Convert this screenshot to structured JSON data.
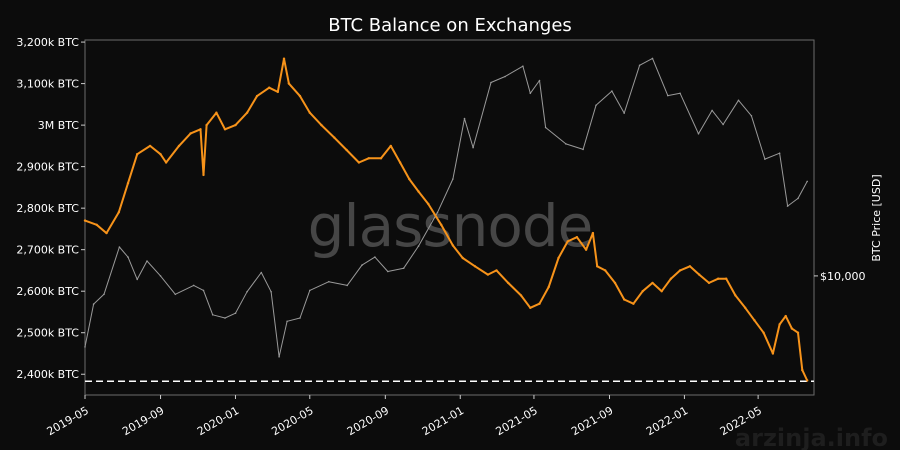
{
  "chart_data": {
    "type": "line",
    "title": "BTC Balance on Exchanges",
    "ylabel": "",
    "y2label": "BTC Price [USD]",
    "x_range": [
      "2019-05-01",
      "2022-07-31"
    ],
    "x_ticks": [
      "2019-05",
      "2019-09",
      "2020-01",
      "2020-05",
      "2020-09",
      "2021-01",
      "2021-05",
      "2021-09",
      "2022-01",
      "2022-05"
    ],
    "y_ticks": [
      {
        "value": 2400000,
        "label": "2,400k BTC"
      },
      {
        "value": 2500000,
        "label": "2,500k BTC"
      },
      {
        "value": 2600000,
        "label": "2,600k BTC"
      },
      {
        "value": 2700000,
        "label": "2,700k BTC"
      },
      {
        "value": 2800000,
        "label": "2,800k BTC"
      },
      {
        "value": 2900000,
        "label": "2,900k BTC"
      },
      {
        "value": 3000000,
        "label": "3M BTC"
      },
      {
        "value": 3100000,
        "label": "3,100k BTC"
      },
      {
        "value": 3200000,
        "label": "3,200k BTC"
      }
    ],
    "ylim": [
      2350000,
      3205000
    ],
    "y2_ticks": [
      {
        "value": 10000,
        "label": "$10,000"
      }
    ],
    "y2_scale": "log",
    "y2lim": [
      3500,
      80000
    ],
    "grid": false,
    "reference_line": {
      "y": 2383000,
      "style": "dashed",
      "color": "#ffffff"
    },
    "series": [
      {
        "axis": "left",
        "color": "#f7931a",
        "points": [
          [
            "2019-05-01",
            2770000
          ],
          [
            "2019-05-20",
            2760000
          ],
          [
            "2019-06-05",
            2740000
          ],
          [
            "2019-06-25",
            2790000
          ],
          [
            "2019-07-10",
            2860000
          ],
          [
            "2019-07-25",
            2930000
          ],
          [
            "2019-08-15",
            2950000
          ],
          [
            "2019-09-01",
            2930000
          ],
          [
            "2019-09-10",
            2910000
          ],
          [
            "2019-10-01",
            2950000
          ],
          [
            "2019-10-20",
            2980000
          ],
          [
            "2019-11-05",
            2990000
          ],
          [
            "2019-11-10",
            2880000
          ],
          [
            "2019-11-15",
            3000000
          ],
          [
            "2019-12-01",
            3030000
          ],
          [
            "2019-12-15",
            2990000
          ],
          [
            "2020-01-01",
            3000000
          ],
          [
            "2020-01-20",
            3030000
          ],
          [
            "2020-02-05",
            3070000
          ],
          [
            "2020-02-25",
            3090000
          ],
          [
            "2020-03-10",
            3080000
          ],
          [
            "2020-03-20",
            3160000
          ],
          [
            "2020-03-28",
            3100000
          ],
          [
            "2020-04-15",
            3070000
          ],
          [
            "2020-05-01",
            3030000
          ],
          [
            "2020-05-20",
            3000000
          ],
          [
            "2020-06-10",
            2970000
          ],
          [
            "2020-06-30",
            2940000
          ],
          [
            "2020-07-20",
            2910000
          ],
          [
            "2020-08-05",
            2920000
          ],
          [
            "2020-08-25",
            2920000
          ],
          [
            "2020-09-10",
            2950000
          ],
          [
            "2020-09-25",
            2910000
          ],
          [
            "2020-10-10",
            2870000
          ],
          [
            "2020-10-25",
            2840000
          ],
          [
            "2020-11-10",
            2810000
          ],
          [
            "2020-12-01",
            2760000
          ],
          [
            "2020-12-20",
            2710000
          ],
          [
            "2021-01-05",
            2680000
          ],
          [
            "2021-01-25",
            2660000
          ],
          [
            "2021-02-15",
            2640000
          ],
          [
            "2021-03-01",
            2650000
          ],
          [
            "2021-03-20",
            2620000
          ],
          [
            "2021-04-10",
            2590000
          ],
          [
            "2021-04-25",
            2560000
          ],
          [
            "2021-05-10",
            2570000
          ],
          [
            "2021-05-25",
            2610000
          ],
          [
            "2021-06-10",
            2680000
          ],
          [
            "2021-06-25",
            2720000
          ],
          [
            "2021-07-10",
            2730000
          ],
          [
            "2021-07-25",
            2700000
          ],
          [
            "2021-08-05",
            2740000
          ],
          [
            "2021-08-12",
            2660000
          ],
          [
            "2021-08-25",
            2650000
          ],
          [
            "2021-09-10",
            2620000
          ],
          [
            "2021-09-25",
            2580000
          ],
          [
            "2021-10-10",
            2570000
          ],
          [
            "2021-10-25",
            2600000
          ],
          [
            "2021-11-10",
            2620000
          ],
          [
            "2021-11-25",
            2600000
          ],
          [
            "2021-12-10",
            2630000
          ],
          [
            "2021-12-25",
            2650000
          ],
          [
            "2022-01-10",
            2660000
          ],
          [
            "2022-01-25",
            2640000
          ],
          [
            "2022-02-10",
            2620000
          ],
          [
            "2022-02-25",
            2630000
          ],
          [
            "2022-03-10",
            2630000
          ],
          [
            "2022-03-25",
            2590000
          ],
          [
            "2022-04-10",
            2560000
          ],
          [
            "2022-04-25",
            2530000
          ],
          [
            "2022-05-10",
            2500000
          ],
          [
            "2022-05-25",
            2450000
          ],
          [
            "2022-06-05",
            2520000
          ],
          [
            "2022-06-15",
            2540000
          ],
          [
            "2022-06-25",
            2510000
          ],
          [
            "2022-07-05",
            2500000
          ],
          [
            "2022-07-12",
            2410000
          ],
          [
            "2022-07-20",
            2385000
          ]
        ]
      },
      {
        "axis": "right",
        "color": "#9a9a9a",
        "points": [
          [
            "2019-05-01",
            5350
          ],
          [
            "2019-05-15",
            7800
          ],
          [
            "2019-06-01",
            8500
          ],
          [
            "2019-06-26",
            12900
          ],
          [
            "2019-07-10",
            11800
          ],
          [
            "2019-07-25",
            9700
          ],
          [
            "2019-08-10",
            11400
          ],
          [
            "2019-09-01",
            10000
          ],
          [
            "2019-09-25",
            8500
          ],
          [
            "2019-10-25",
            9200
          ],
          [
            "2019-11-10",
            8800
          ],
          [
            "2019-11-25",
            7100
          ],
          [
            "2019-12-15",
            6900
          ],
          [
            "2020-01-01",
            7200
          ],
          [
            "2020-01-20",
            8700
          ],
          [
            "2020-02-12",
            10300
          ],
          [
            "2020-02-28",
            8700
          ],
          [
            "2020-03-12",
            4900
          ],
          [
            "2020-03-25",
            6700
          ],
          [
            "2020-04-15",
            6900
          ],
          [
            "2020-05-01",
            8800
          ],
          [
            "2020-06-01",
            9500
          ],
          [
            "2020-07-01",
            9200
          ],
          [
            "2020-07-25",
            11000
          ],
          [
            "2020-08-15",
            11800
          ],
          [
            "2020-09-05",
            10400
          ],
          [
            "2020-10-01",
            10700
          ],
          [
            "2020-10-25",
            13000
          ],
          [
            "2020-11-25",
            17500
          ],
          [
            "2020-12-20",
            23500
          ],
          [
            "2021-01-08",
            40000
          ],
          [
            "2021-01-22",
            31000
          ],
          [
            "2021-02-20",
            55000
          ],
          [
            "2021-03-15",
            58000
          ],
          [
            "2021-04-13",
            63500
          ],
          [
            "2021-04-25",
            50000
          ],
          [
            "2021-05-10",
            56000
          ],
          [
            "2021-05-20",
            37000
          ],
          [
            "2021-06-22",
            32000
          ],
          [
            "2021-07-20",
            30500
          ],
          [
            "2021-08-10",
            45000
          ],
          [
            "2021-09-05",
            51000
          ],
          [
            "2021-09-25",
            42000
          ],
          [
            "2021-10-20",
            64000
          ],
          [
            "2021-11-10",
            68000
          ],
          [
            "2021-12-05",
            49000
          ],
          [
            "2021-12-25",
            50000
          ],
          [
            "2022-01-24",
            35000
          ],
          [
            "2022-02-15",
            43000
          ],
          [
            "2022-03-05",
            38000
          ],
          [
            "2022-03-30",
            47000
          ],
          [
            "2022-04-20",
            41000
          ],
          [
            "2022-05-12",
            28000
          ],
          [
            "2022-06-05",
            29500
          ],
          [
            "2022-06-18",
            18500
          ],
          [
            "2022-07-05",
            19800
          ],
          [
            "2022-07-20",
            23000
          ]
        ]
      }
    ]
  },
  "watermark": "glassnode",
  "source_text": "arzinja.info"
}
